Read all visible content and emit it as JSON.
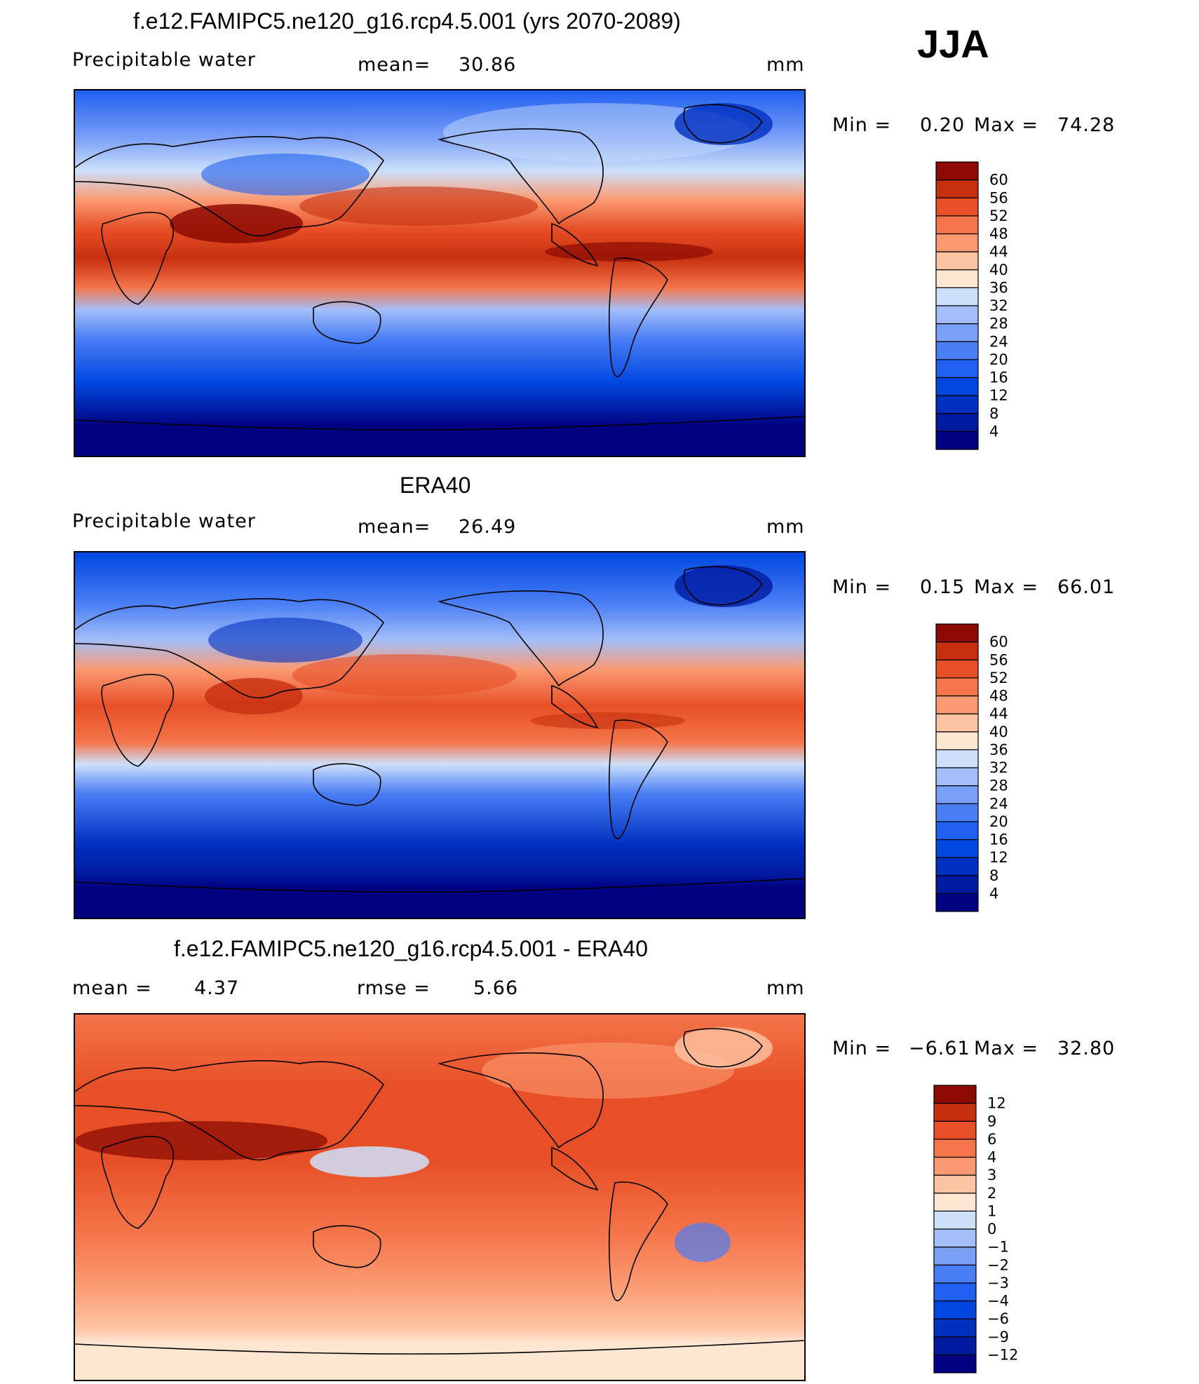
{
  "season": "JJA",
  "panels": [
    {
      "id": "model",
      "title": "f.e12.FAMIPC5.ne120_g16.rcp4.5.001 (yrs 2070-2089)",
      "left_label": "Precipitable  water",
      "center_label": "mean=",
      "center_value": "30.86",
      "units": "mm",
      "min_label": "Min  =",
      "min_value": "0.20",
      "max_label": "Max  =",
      "max_value": "74.28",
      "colorbar": {
        "colors": [
          "#000080",
          "#001AA0",
          "#0030C0",
          "#0047E0",
          "#2060F0",
          "#4A7EF5",
          "#7A9FF7",
          "#A3BEF8",
          "#CCE0FA",
          "#FDE6D2",
          "#FDC4A4",
          "#FB9A72",
          "#F5754A",
          "#E74F26",
          "#C7300F",
          "#8C0A02"
        ],
        "labels": [
          "60",
          "56",
          "52",
          "48",
          "44",
          "40",
          "36",
          "32",
          "28",
          "24",
          "20",
          "16",
          "12",
          "8",
          "4"
        ]
      }
    },
    {
      "id": "obs",
      "title": "ERA40",
      "left_label": "Precipitable  water",
      "center_label": "mean=",
      "center_value": "26.49",
      "units": "mm",
      "min_label": "Min  =",
      "min_value": "0.15",
      "max_label": "Max  =",
      "max_value": "66.01",
      "colorbar": {
        "colors": [
          "#000080",
          "#001AA0",
          "#0030C0",
          "#0047E0",
          "#2060F0",
          "#4A7EF5",
          "#7A9FF7",
          "#A3BEF8",
          "#CCE0FA",
          "#FDE6D2",
          "#FDC4A4",
          "#FB9A72",
          "#F5754A",
          "#E74F26",
          "#C7300F",
          "#8C0A02"
        ],
        "labels": [
          "60",
          "56",
          "52",
          "48",
          "44",
          "40",
          "36",
          "32",
          "28",
          "24",
          "20",
          "16",
          "12",
          "8",
          "4"
        ]
      }
    },
    {
      "id": "diff",
      "title": "f.e12.FAMIPC5.ne120_g16.rcp4.5.001 - ERA40",
      "left_label": "mean  =",
      "left_value": "4.37",
      "center_label": "rmse  =",
      "center_value": "5.66",
      "units": "mm",
      "min_label": "Min  =",
      "min_value": "−6.61",
      "max_label": "Max  =",
      "max_value": "32.80",
      "colorbar": {
        "colors": [
          "#000080",
          "#001AA0",
          "#0030C0",
          "#0047E0",
          "#2060F0",
          "#4A7EF5",
          "#7A9FF7",
          "#A3BEF8",
          "#CCE0FA",
          "#FDE6D2",
          "#FDC4A4",
          "#FB9A72",
          "#F5754A",
          "#E74F26",
          "#C7300F",
          "#8C0A02"
        ],
        "labels": [
          "12",
          "9",
          "6",
          "4",
          "3",
          "2",
          "1",
          "0",
          "−1",
          "−2",
          "−3",
          "−4",
          "−6",
          "−9",
          "−12"
        ]
      }
    }
  ]
}
